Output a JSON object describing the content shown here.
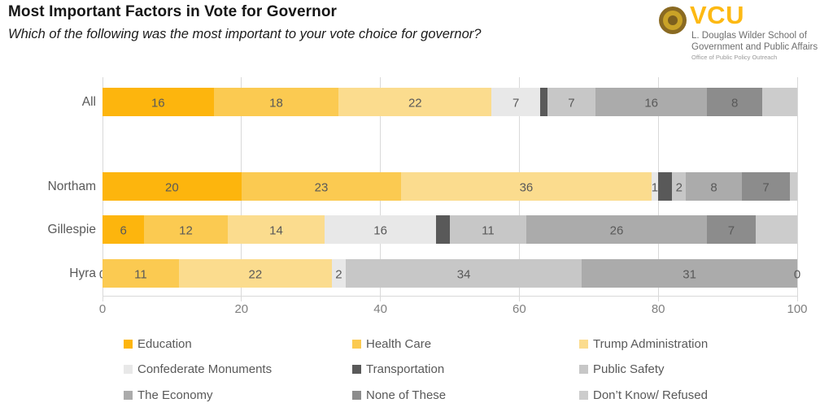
{
  "chart_data": {
    "type": "bar",
    "orientation": "horizontal",
    "stacked": true,
    "title": "Most Important Factors in Vote for Governor",
    "subtitle": "Which of the following was the most important to your vote choice for governor?",
    "categories": [
      "All",
      "Northam",
      "Gillespie",
      "Hyra"
    ],
    "series": [
      {
        "name": "Education",
        "color": "#FDB50D",
        "values": [
          16,
          20,
          6,
          0
        ],
        "labels": [
          "16",
          "20",
          "6",
          "0"
        ]
      },
      {
        "name": "Health Care",
        "color": "#FBCA51",
        "values": [
          18,
          23,
          12,
          11
        ],
        "labels": [
          "18",
          "23",
          "12",
          "11"
        ]
      },
      {
        "name": "Trump Administration",
        "color": "#FBDC8E",
        "values": [
          22,
          36,
          14,
          22
        ],
        "labels": [
          "22",
          "36",
          "14",
          "22"
        ]
      },
      {
        "name": "Confederate Monuments",
        "color": "#E8E8E8",
        "values": [
          7,
          1,
          16,
          2
        ],
        "labels": [
          "7",
          "1",
          "16",
          "2"
        ]
      },
      {
        "name": "Transportation",
        "color": "#595959",
        "values": [
          1,
          2,
          2,
          0
        ],
        "labels": [
          "",
          "",
          "",
          ""
        ]
      },
      {
        "name": "Public Safety",
        "color": "#C7C7C7",
        "values": [
          7,
          2,
          11,
          34
        ],
        "labels": [
          "7",
          "2",
          "11",
          "34"
        ]
      },
      {
        "name": "The Economy",
        "color": "#ABABAB",
        "values": [
          16,
          8,
          26,
          31
        ],
        "labels": [
          "16",
          "8",
          "26",
          "31"
        ]
      },
      {
        "name": "None of These",
        "color": "#8C8C8C",
        "values": [
          8,
          7,
          7,
          0
        ],
        "labels": [
          "8",
          "7",
          "7",
          ""
        ]
      },
      {
        "name": "Don’t Know/ Refused",
        "color": "#CCCCCC",
        "values": [
          5,
          1,
          6,
          0
        ],
        "labels": [
          "",
          "",
          "",
          "0"
        ]
      }
    ],
    "xlim": [
      0,
      100
    ],
    "xticks": [
      0,
      20,
      40,
      60,
      80,
      100
    ],
    "grid": "vertical",
    "legend_position": "bottom",
    "legend_columns": 3
  },
  "logo": {
    "acronym": "VCU",
    "school_line1": "L. Douglas Wilder School of",
    "school_line2": "Government and Public Affairs",
    "office": "Office of Public Policy Outreach",
    "gold": "#FDB913"
  }
}
